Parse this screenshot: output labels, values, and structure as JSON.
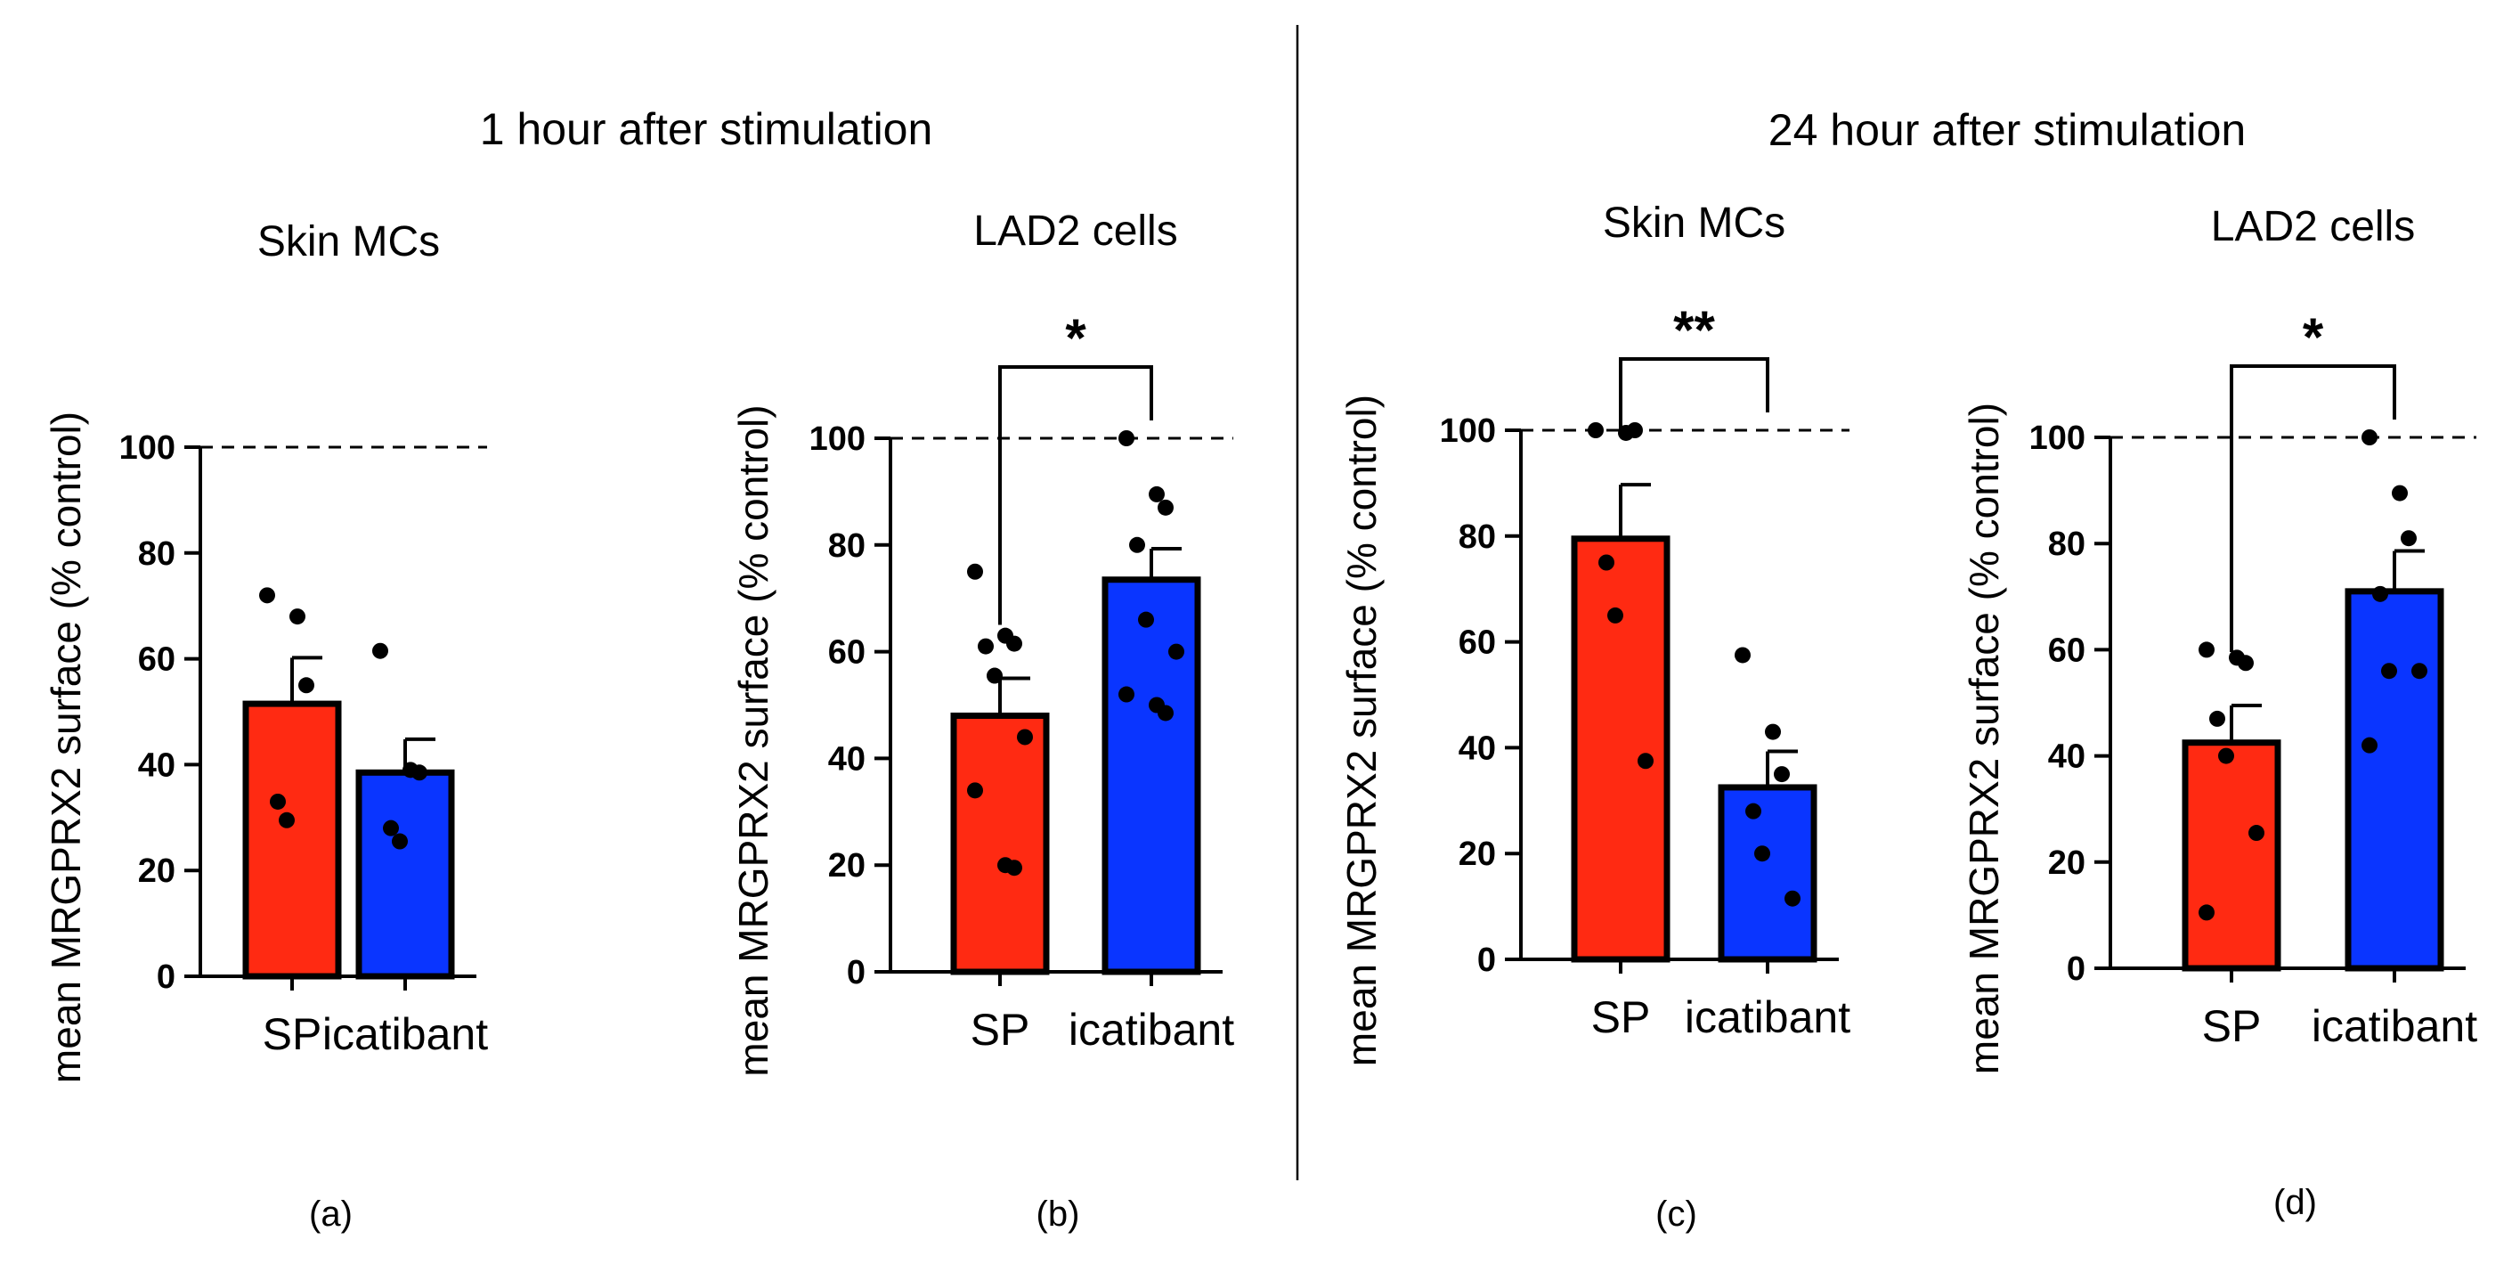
{
  "figure": {
    "left_group_title": "1 hour after stimulation",
    "right_group_title": "24 hour after stimulation",
    "colors": {
      "sp": "#ff2a12",
      "icatibant": "#0a35ff",
      "axis": "#000000"
    }
  },
  "chart_data": [
    {
      "type": "bar",
      "panel_label": "(a)",
      "title": "Skin MCs",
      "ylabel": "mean MRGPRX2 surface (% control)",
      "xlabel": "",
      "ylim": [
        0,
        100
      ],
      "yticks": [
        0,
        20,
        40,
        60,
        80,
        100
      ],
      "categories": [
        "SP",
        "icatibant"
      ],
      "values": [
        51.5,
        38.5
      ],
      "sem": [
        8.7,
        6.3
      ],
      "points": [
        [
          72,
          68,
          55,
          33,
          29.5
        ],
        [
          61.5,
          39,
          38.5,
          28,
          25.5
        ]
      ],
      "reference_line": 100,
      "significance": ""
    },
    {
      "type": "bar",
      "panel_label": "(b)",
      "title": "LAD2 cells",
      "ylabel": "mean MRGPRX2 surface (% control)",
      "xlabel": "",
      "ylim": [
        0,
        100
      ],
      "yticks": [
        0,
        20,
        40,
        60,
        80,
        100
      ],
      "categories": [
        "SP",
        "icatibant"
      ],
      "values": [
        48,
        73.5
      ],
      "sem": [
        7,
        5.8
      ],
      "points": [
        [
          75,
          63,
          61.5,
          61,
          55.5,
          44,
          34,
          20,
          19.5
        ],
        [
          100,
          89.5,
          87,
          80,
          66,
          60,
          52,
          50,
          48.5
        ]
      ],
      "reference_line": 100,
      "significance": "*"
    },
    {
      "type": "bar",
      "panel_label": "(c)",
      "title": "Skin MCs",
      "ylabel": "mean MRGPRX2 surface (% control)",
      "xlabel": "",
      "ylim": [
        0,
        100
      ],
      "yticks": [
        0,
        20,
        40,
        60,
        80,
        100
      ],
      "categories": [
        "SP",
        "icatibant"
      ],
      "values": [
        79.5,
        32.5
      ],
      "sem": [
        10.2,
        6.8
      ],
      "points": [
        [
          100,
          99.5,
          100,
          75,
          65,
          37.5
        ],
        [
          57.5,
          43,
          35,
          28,
          20,
          11.5
        ]
      ],
      "reference_line": 100,
      "significance": "**"
    },
    {
      "type": "bar",
      "panel_label": "(d)",
      "title": "LAD2 cells",
      "ylabel": "mean MRGPRX2 surface (% control)",
      "xlabel": "",
      "ylim": [
        0,
        100
      ],
      "yticks": [
        0,
        20,
        40,
        60,
        80,
        100
      ],
      "categories": [
        "SP",
        "icatibant"
      ],
      "values": [
        42.5,
        71
      ],
      "sem": [
        7,
        7.6
      ],
      "points": [
        [
          60,
          58.5,
          57.5,
          47,
          40,
          25.5,
          10.5
        ],
        [
          100,
          89.5,
          81,
          70.5,
          56,
          56,
          42
        ]
      ],
      "reference_line": 100,
      "significance": "*"
    }
  ]
}
